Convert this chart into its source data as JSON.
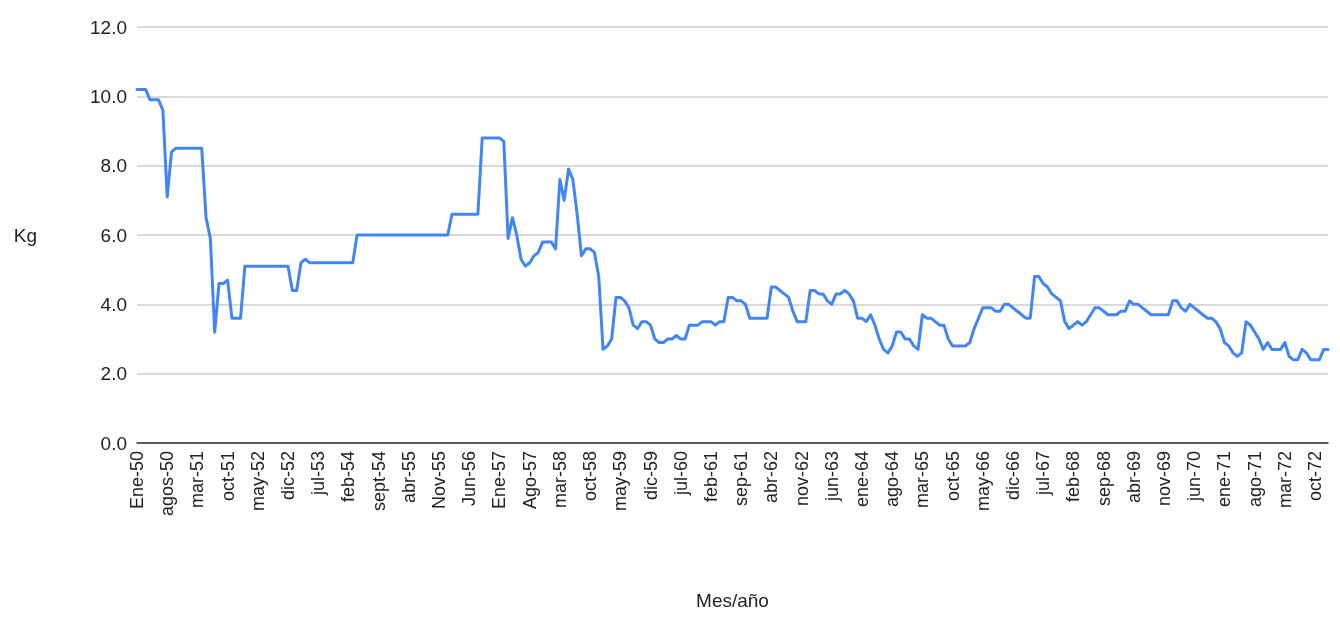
{
  "chart_data": {
    "type": "line",
    "xlabel": "Mes/año",
    "ylabel": "Kg",
    "categories": [
      "Ene-50",
      null,
      null,
      null,
      null,
      null,
      null,
      "agos-50",
      null,
      null,
      null,
      null,
      null,
      null,
      "mar-51",
      null,
      null,
      null,
      null,
      null,
      null,
      "oct-51",
      null,
      null,
      null,
      null,
      null,
      null,
      "may-52",
      null,
      null,
      null,
      null,
      null,
      null,
      "dic-52",
      null,
      null,
      null,
      null,
      null,
      null,
      "jul-53",
      null,
      null,
      null,
      null,
      null,
      null,
      "feb-54",
      null,
      null,
      null,
      null,
      null,
      null,
      "sept-54",
      null,
      null,
      null,
      null,
      null,
      null,
      "abr-55",
      null,
      null,
      null,
      null,
      null,
      null,
      "Nov-55",
      null,
      null,
      null,
      null,
      null,
      null,
      "Jun-56",
      null,
      null,
      null,
      null,
      null,
      null,
      "Ene-57",
      null,
      null,
      null,
      null,
      null,
      null,
      "Ago-57",
      null,
      null,
      null,
      null,
      null,
      null,
      "mar-58",
      null,
      null,
      null,
      null,
      null,
      null,
      "oct-58",
      null,
      null,
      null,
      null,
      null,
      null,
      "may-59",
      null,
      null,
      null,
      null,
      null,
      null,
      "dic-59",
      null,
      null,
      null,
      null,
      null,
      null,
      "jul-60",
      null,
      null,
      null,
      null,
      null,
      null,
      "feb-61",
      null,
      null,
      null,
      null,
      null,
      null,
      "sep-61",
      null,
      null,
      null,
      null,
      null,
      null,
      "abr-62",
      null,
      null,
      null,
      null,
      null,
      null,
      "nov-62",
      null,
      null,
      null,
      null,
      null,
      null,
      "jun-63",
      null,
      null,
      null,
      null,
      null,
      null,
      "ene-64",
      null,
      null,
      null,
      null,
      null,
      null,
      "ago-64",
      null,
      null,
      null,
      null,
      null,
      null,
      "mar-65",
      null,
      null,
      null,
      null,
      null,
      null,
      "oct-65",
      null,
      null,
      null,
      null,
      null,
      null,
      "may-66",
      null,
      null,
      null,
      null,
      null,
      null,
      "dic-66",
      null,
      null,
      null,
      null,
      null,
      null,
      "jul-67",
      null,
      null,
      null,
      null,
      null,
      null,
      "feb-68",
      null,
      null,
      null,
      null,
      null,
      null,
      "sep-68",
      null,
      null,
      null,
      null,
      null,
      null,
      "abr-69",
      null,
      null,
      null,
      null,
      null,
      null,
      "nov-69",
      null,
      null,
      null,
      null,
      null,
      null,
      "jun-70",
      null,
      null,
      null,
      null,
      null,
      null,
      "ene-71",
      null,
      null,
      null,
      null,
      null,
      null,
      "ago-71",
      null,
      null,
      null,
      null,
      null,
      null,
      "mar-72",
      null,
      null,
      null,
      null,
      null,
      null,
      "oct-72",
      null,
      null,
      null
    ],
    "series": [
      {
        "color": "#4285f4",
        "values": [
          10.2,
          10.2,
          10.2,
          9.9,
          9.9,
          9.9,
          9.6,
          7.1,
          8.4,
          8.5,
          8.5,
          8.5,
          8.5,
          8.5,
          8.5,
          8.5,
          6.5,
          5.9,
          3.2,
          4.6,
          4.6,
          4.7,
          3.6,
          3.6,
          3.6,
          5.1,
          5.1,
          5.1,
          5.1,
          5.1,
          5.1,
          5.1,
          5.1,
          5.1,
          5.1,
          5.1,
          4.4,
          4.4,
          5.2,
          5.3,
          5.2,
          5.2,
          5.2,
          5.2,
          5.2,
          5.2,
          5.2,
          5.2,
          5.2,
          5.2,
          5.2,
          6.0,
          6.0,
          6.0,
          6.0,
          6.0,
          6.0,
          6.0,
          6.0,
          6.0,
          6.0,
          6.0,
          6.0,
          6.0,
          6.0,
          6.0,
          6.0,
          6.0,
          6.0,
          6.0,
          6.0,
          6.0,
          6.0,
          6.6,
          6.6,
          6.6,
          6.6,
          6.6,
          6.6,
          6.6,
          8.8,
          8.8,
          8.8,
          8.8,
          8.8,
          8.7,
          5.9,
          6.5,
          6.0,
          5.3,
          5.1,
          5.2,
          5.4,
          5.5,
          5.8,
          5.8,
          5.8,
          5.6,
          7.6,
          7.0,
          7.9,
          7.6,
          6.6,
          5.4,
          5.6,
          5.6,
          5.5,
          4.8,
          2.7,
          2.8,
          3.0,
          4.2,
          4.2,
          4.1,
          3.9,
          3.4,
          3.3,
          3.5,
          3.5,
          3.4,
          3.0,
          2.9,
          2.9,
          3.0,
          3.0,
          3.1,
          3.0,
          3.0,
          3.4,
          3.4,
          3.4,
          3.5,
          3.5,
          3.5,
          3.4,
          3.5,
          3.5,
          4.2,
          4.2,
          4.1,
          4.1,
          4.0,
          3.6,
          3.6,
          3.6,
          3.6,
          3.6,
          4.5,
          4.5,
          4.4,
          4.3,
          4.2,
          3.8,
          3.5,
          3.5,
          3.5,
          4.4,
          4.4,
          4.3,
          4.3,
          4.1,
          4.0,
          4.3,
          4.3,
          4.4,
          4.3,
          4.1,
          3.6,
          3.6,
          3.5,
          3.7,
          3.4,
          3.0,
          2.7,
          2.6,
          2.8,
          3.2,
          3.2,
          3.0,
          3.0,
          2.8,
          2.7,
          3.7,
          3.6,
          3.6,
          3.5,
          3.4,
          3.4,
          3.0,
          2.8,
          2.8,
          2.8,
          2.8,
          2.9,
          3.3,
          3.6,
          3.9,
          3.9,
          3.9,
          3.8,
          3.8,
          4.0,
          4.0,
          3.9,
          3.8,
          3.7,
          3.6,
          3.6,
          4.8,
          4.8,
          4.6,
          4.5,
          4.3,
          4.2,
          4.1,
          3.5,
          3.3,
          3.4,
          3.5,
          3.4,
          3.5,
          3.7,
          3.9,
          3.9,
          3.8,
          3.7,
          3.7,
          3.7,
          3.8,
          3.8,
          4.1,
          4.0,
          4.0,
          3.9,
          3.8,
          3.7,
          3.7,
          3.7,
          3.7,
          3.7,
          4.1,
          4.1,
          3.9,
          3.8,
          4.0,
          3.9,
          3.8,
          3.7,
          3.6,
          3.6,
          3.5,
          3.3,
          2.9,
          2.8,
          2.6,
          2.5,
          2.6,
          3.5,
          3.4,
          3.2,
          3.0,
          2.7,
          2.9,
          2.7,
          2.7,
          2.7,
          2.9,
          2.5,
          2.4,
          2.4,
          2.7,
          2.6,
          2.4,
          2.4,
          2.4,
          2.7,
          2.7
        ]
      }
    ],
    "ylim": [
      0,
      12
    ],
    "yticks": [
      {
        "value": 0,
        "label": "0.0"
      },
      {
        "value": 2,
        "label": "2.0"
      },
      {
        "value": 4,
        "label": "4.0"
      },
      {
        "value": 6,
        "label": "6.0"
      },
      {
        "value": 8,
        "label": "8.0"
      },
      {
        "value": 10,
        "label": "10.0"
      },
      {
        "value": 12,
        "label": "12.0"
      }
    ],
    "grid": "y",
    "marker": "none",
    "line_style": "solid"
  }
}
